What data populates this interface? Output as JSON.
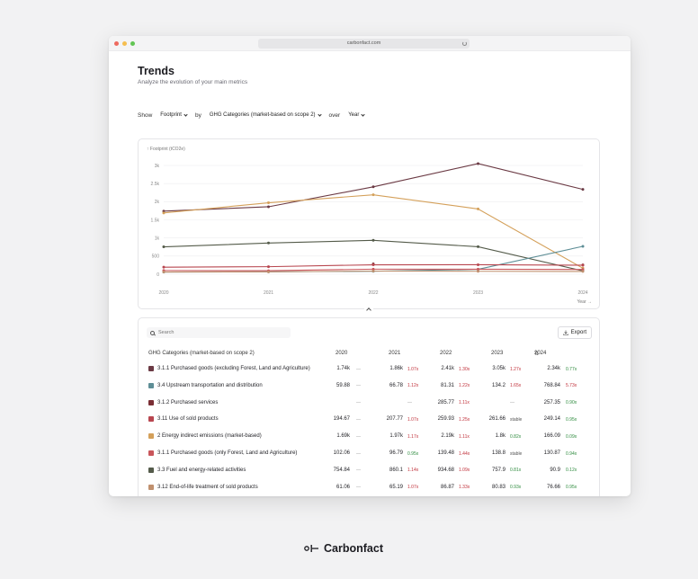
{
  "browser": {
    "url": "carbonfact.com"
  },
  "page": {
    "title": "Trends",
    "subtitle": "Analyze the evolution of your main metrics"
  },
  "filters": {
    "show_label": "Show",
    "show_value": "Footprint",
    "by_label": "by",
    "by_value": "GHG Categories (market-based on scope 2)",
    "over_label": "over",
    "over_value": "Year"
  },
  "chart_data": {
    "type": "line",
    "ylabel": "↑ Footprint (tCO2e)",
    "xlabel": "Year →",
    "x": [
      "2020",
      "2021",
      "2022",
      "2023",
      "2024"
    ],
    "yticks": [
      "0",
      "500",
      "1k",
      "1.5k",
      "2k",
      "2.5k",
      "3k"
    ],
    "ylim": [
      0,
      3000
    ],
    "grid": true,
    "series": [
      {
        "color": "#6b3a44",
        "values": [
          1740,
          1860,
          2410,
          3050,
          2340
        ]
      },
      {
        "color": "#d4a05a",
        "values": [
          1690,
          1970,
          2190,
          1800,
          166
        ]
      },
      {
        "color": "#545b4a",
        "values": [
          754.84,
          860.1,
          934.68,
          757.9,
          90.9
        ]
      },
      {
        "color": "#5e8e96",
        "values": [
          59.88,
          66.78,
          81.31,
          134.2,
          768.84
        ]
      },
      {
        "color": "#7a2e34",
        "values": [
          null,
          null,
          285.77,
          null,
          257.35
        ]
      },
      {
        "color": "#b8464f",
        "values": [
          194.67,
          207.77,
          259.93,
          261.66,
          249.14
        ]
      },
      {
        "color": "#c9565b",
        "values": [
          102.06,
          96.79,
          139.48,
          138.8,
          130.87
        ]
      },
      {
        "color": "#c0906e",
        "values": [
          61.06,
          65.19,
          86.87,
          80.83,
          76.66
        ]
      }
    ]
  },
  "search": {
    "placeholder": "Search"
  },
  "export_label": "Export",
  "table": {
    "category_header": "GHG Categories (market-based on scope 2)",
    "years": [
      "2020",
      "2021",
      "2022",
      "2023",
      "2024"
    ],
    "rows": [
      {
        "color": "#6b3a44",
        "name": "3.1.1 Purchased goods (excluding Forest, Land and Agriculture)",
        "cells": [
          {
            "v": "1.74k",
            "c": "—",
            "t": "dash"
          },
          {
            "v": "1.86k",
            "c": "1.07x",
            "t": "up"
          },
          {
            "v": "2.41k",
            "c": "1.30x",
            "t": "up"
          },
          {
            "v": "3.05k",
            "c": "1.27x",
            "t": "up"
          },
          {
            "v": "2.34k",
            "c": "0.77x",
            "t": "down"
          }
        ]
      },
      {
        "color": "#5e8e96",
        "name": "3.4 Upstream transportation and distribution",
        "cells": [
          {
            "v": "59.88",
            "c": "—",
            "t": "dash"
          },
          {
            "v": "66.78",
            "c": "1.12x",
            "t": "up"
          },
          {
            "v": "81.31",
            "c": "1.22x",
            "t": "up"
          },
          {
            "v": "134.2",
            "c": "1.65x",
            "t": "up"
          },
          {
            "v": "768.84",
            "c": "5.73x",
            "t": "up"
          }
        ]
      },
      {
        "color": "#7a2e34",
        "name": "3.1.2 Purchased services",
        "cells": [
          {
            "v": "",
            "c": "—",
            "t": "dash"
          },
          {
            "v": "",
            "c": "—",
            "t": "dash"
          },
          {
            "v": "285.77",
            "c": "1.11x",
            "t": "up"
          },
          {
            "v": "",
            "c": "—",
            "t": "dash"
          },
          {
            "v": "257.35",
            "c": "0.90x",
            "t": "down"
          }
        ]
      },
      {
        "color": "#b8464f",
        "name": "3.11 Use of sold products",
        "cells": [
          {
            "v": "194.67",
            "c": "—",
            "t": "dash"
          },
          {
            "v": "207.77",
            "c": "1.07x",
            "t": "up"
          },
          {
            "v": "259.93",
            "c": "1.25x",
            "t": "up"
          },
          {
            "v": "261.66",
            "c": "stable",
            "t": "neutral"
          },
          {
            "v": "249.14",
            "c": "0.95x",
            "t": "down"
          }
        ]
      },
      {
        "color": "#d4a05a",
        "name": "2 Energy indirect emissions (market-based)",
        "cells": [
          {
            "v": "1.69k",
            "c": "—",
            "t": "dash"
          },
          {
            "v": "1.97k",
            "c": "1.17x",
            "t": "up"
          },
          {
            "v": "2.19k",
            "c": "1.11x",
            "t": "up"
          },
          {
            "v": "1.8k",
            "c": "0.82x",
            "t": "down"
          },
          {
            "v": "166.09",
            "c": "0.09x",
            "t": "down"
          }
        ]
      },
      {
        "color": "#c9565b",
        "name": "3.1.1 Purchased goods (only Forest, Land and Agriculture)",
        "cells": [
          {
            "v": "102.06",
            "c": "—",
            "t": "dash"
          },
          {
            "v": "96.79",
            "c": "0.95x",
            "t": "down"
          },
          {
            "v": "139.48",
            "c": "1.44x",
            "t": "up"
          },
          {
            "v": "138.8",
            "c": "stable",
            "t": "neutral"
          },
          {
            "v": "130.87",
            "c": "0.94x",
            "t": "down"
          }
        ]
      },
      {
        "color": "#545b4a",
        "name": "3.3 Fuel and energy-related activities",
        "cells": [
          {
            "v": "754.84",
            "c": "—",
            "t": "dash"
          },
          {
            "v": "860.1",
            "c": "1.14x",
            "t": "up"
          },
          {
            "v": "934.68",
            "c": "1.09x",
            "t": "up"
          },
          {
            "v": "757.9",
            "c": "0.81x",
            "t": "down"
          },
          {
            "v": "90.9",
            "c": "0.12x",
            "t": "down"
          }
        ]
      },
      {
        "color": "#c0906e",
        "name": "3.12 End-of-life treatment of sold products",
        "cells": [
          {
            "v": "61.06",
            "c": "—",
            "t": "dash"
          },
          {
            "v": "65.19",
            "c": "1.07x",
            "t": "up"
          },
          {
            "v": "86.87",
            "c": "1.33x",
            "t": "up"
          },
          {
            "v": "80.83",
            "c": "0.93x",
            "t": "down"
          },
          {
            "v": "76.66",
            "c": "0.95x",
            "t": "down"
          }
        ]
      }
    ]
  },
  "brand": {
    "name": "Carbonfact"
  }
}
